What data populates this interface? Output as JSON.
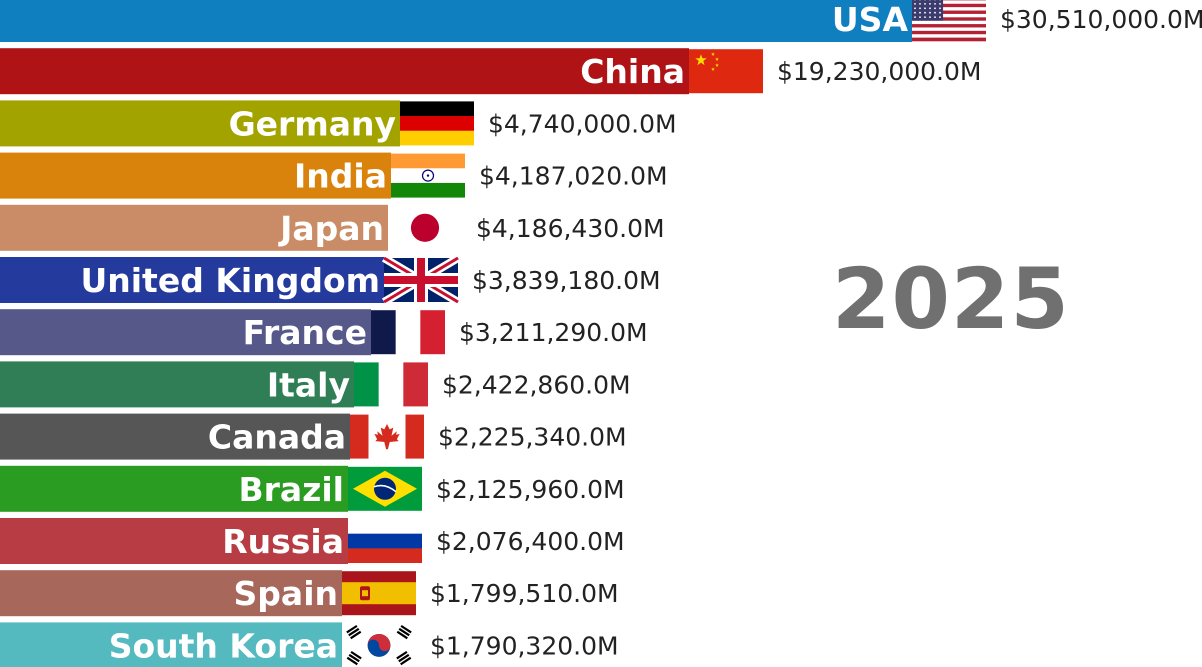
{
  "year_label": "2025",
  "chart_data": {
    "type": "bar",
    "orientation": "horizontal",
    "title": "",
    "xlabel": "",
    "ylabel": "",
    "value_format": "$#,###.0M",
    "categories": [
      "USA",
      "China",
      "Germany",
      "India",
      "Japan",
      "United Kingdom",
      "France",
      "Italy",
      "Canada",
      "Brazil",
      "Russia",
      "Spain",
      "South Korea"
    ],
    "values": [
      30510000.0,
      19230000.0,
      4740000.0,
      4187020.0,
      4186430.0,
      3839180.0,
      3211290.0,
      2422860.0,
      2225340.0,
      2125960.0,
      2076400.0,
      1799510.0,
      1790320.0
    ],
    "value_labels": [
      "$30,510,000.0M",
      "$19,230,000.0M",
      "$4,740,000.0M",
      "$4,187,020.0M",
      "$4,186,430.0M",
      "$3,839,180.0M",
      "$3,211,290.0M",
      "$2,422,860.0M",
      "$2,225,340.0M",
      "$2,125,960.0M",
      "$2,076,400.0M",
      "$1,799,510.0M",
      "$1,790,320.0M"
    ],
    "colors": [
      "#0f7fc0",
      "#b01316",
      "#a3a300",
      "#d9820c",
      "#c98c66",
      "#243a9c",
      "#555889",
      "#2f7e56",
      "#565656",
      "#2a9c22",
      "#b83c44",
      "#a7675a",
      "#55b9c0"
    ],
    "flags": [
      "usa-flag",
      "china-flag",
      "germany-flag",
      "india-flag",
      "japan-flag",
      "uk-flag",
      "france-flag",
      "italy-flag",
      "canada-flag",
      "brazil-flag",
      "russia-flag",
      "spain-flag",
      "south-korea-flag"
    ]
  }
}
